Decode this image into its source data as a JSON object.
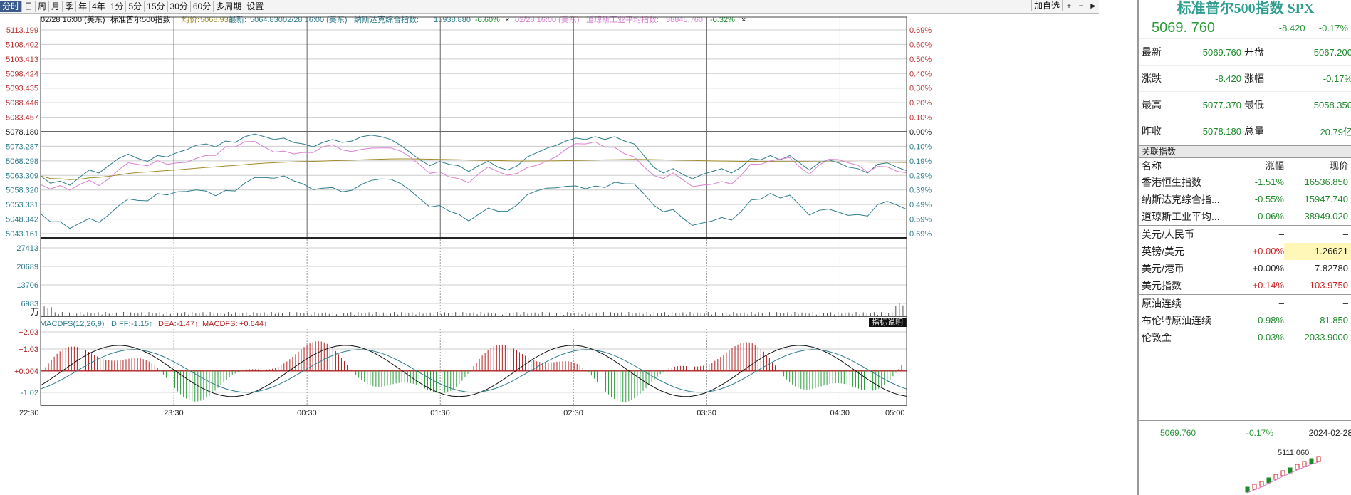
{
  "toolbar": {
    "buttons": [
      "分时",
      "日",
      "周",
      "月",
      "季",
      "年",
      "4年",
      "1分",
      "5分",
      "15分",
      "30分",
      "60分",
      "多周期",
      "设置"
    ],
    "active": 0,
    "add_select_label": "加自选",
    "plus_icon": "plus-icon",
    "minus_icon": "minus-icon",
    "arrow_icon": "arrow-right-icon"
  },
  "chart": {
    "header": {
      "time": "02/28 16:00 (美东)",
      "name": "标准普尔500指数",
      "avg_label": "均价:",
      "avg_value": "5068.938",
      "last_label": "最新:",
      "last_value": "5064.830",
      "compare1_time": "02/28 16:00 (美东)",
      "compare1_name": "纳斯达克综合指数:",
      "compare1_value": "15938.880",
      "compare1_pct": "-0.60%",
      "compare2_time": "02/28 16:00 (美东)",
      "compare2_name": "道琼斯工业平均指数:",
      "compare2_value": "38845.760",
      "compare2_pct": "-0.32%",
      "close_mark": "×"
    },
    "price_labels_left": [
      "5113.199",
      "5108.402",
      "5103.413",
      "5098.424",
      "5093.435",
      "5088.446",
      "5083.457",
      "5078.180",
      "5073.287",
      "5068.298",
      "5063.309",
      "5058.320",
      "5053.331",
      "5048.342",
      "5043.161"
    ],
    "price_labels_right": [
      "0.69%",
      "0.60%",
      "0.50%",
      "0.40%",
      "0.30%",
      "0.20%",
      "0.10%",
      "0.00%",
      "0.10%",
      "0.19%",
      "0.29%",
      "0.39%",
      "0.49%",
      "0.59%",
      "0.69%"
    ],
    "volume_labels": [
      "27413",
      "20689",
      "13706",
      "6983"
    ],
    "volume_unit": "万",
    "indicator_button": "指标说明",
    "macd_header": {
      "name": "MACDFS(12,26,9)",
      "diff_label": "DIFF:",
      "diff": "-1.15↑",
      "dea_label": "DEA:",
      "dea": "-1.47↑",
      "macd_label": "MACDFS:",
      "macd": "+0.644↑"
    },
    "macd_labels": [
      "+2.03",
      "+1.03",
      "+0.004",
      "-1.02"
    ],
    "time_labels": [
      "22:30",
      "23:30",
      "00:30",
      "01:30",
      "02:30",
      "03:30",
      "04:30",
      "05:00"
    ],
    "colors": {
      "price": "#2e7d8c",
      "avg": "#a08c2a",
      "nasdaq": "#2e7d8c",
      "dow": "#d97fd0",
      "macd_up": "#b02020",
      "macd_down": "#2a9a3a"
    },
    "chart_data": {
      "type": "line",
      "x_start": "22:30",
      "x_end": "05:00",
      "ylim": [
        5043.161,
        5113.199
      ],
      "prev_close": 5078.18,
      "series": [
        {
          "name": "标准普尔500指数",
          "values": [
            5063.0,
            5060.5,
            5061.2,
            5059.8,
            5062.5,
            5065.0,
            5064.0,
            5066.5,
            5069.0,
            5070.5,
            5069.0,
            5068.0,
            5070.0,
            5069.5,
            5071.0,
            5072.0,
            5073.5,
            5074.0,
            5073.0,
            5075.0,
            5074.5,
            5076.5,
            5077.4,
            5076.5,
            5075.5,
            5076.0,
            5074.5,
            5074.0,
            5073.0,
            5074.5,
            5075.5,
            5074.5,
            5075.0,
            5076.5,
            5077.0,
            5076.5,
            5075.5,
            5073.5,
            5071.0,
            5068.5,
            5066.5,
            5068.0,
            5067.0,
            5066.5,
            5064.5,
            5066.5,
            5068.0,
            5066.0,
            5065.0,
            5066.5,
            5069.5,
            5071.0,
            5072.5,
            5073.5,
            5075.0,
            5076.0,
            5075.5,
            5076.5,
            5075.5,
            5076.5,
            5075.0,
            5074.0,
            5070.0,
            5066.0,
            5064.0,
            5065.5,
            5063.5,
            5062.0,
            5063.5,
            5064.5,
            5065.5,
            5064.0,
            5066.0,
            5069.0,
            5068.5,
            5070.0,
            5068.5,
            5070.0,
            5067.5,
            5065.0,
            5067.5,
            5068.5,
            5067.5,
            5066.0,
            5065.5,
            5064.0,
            5067.0,
            5067.5,
            5066.0,
            5064.8
          ]
        }
      ]
    }
  },
  "panel": {
    "title": "标准普尔500指数 SPX",
    "price": "5069. 760",
    "change": "-8.420",
    "change_pct": "-0.17%",
    "stats": [
      {
        "k1": "最新",
        "v1": "5069.760",
        "k2": "开盘",
        "v2": "5067.200"
      },
      {
        "k1": "涨跌",
        "v1": "-8.420",
        "k2": "涨幅",
        "v2": "-0.17%"
      },
      {
        "k1": "最高",
        "v1": "5077.370",
        "k2": "最低",
        "v2": "5058.350"
      },
      {
        "k1": "昨收",
        "v1": "5078.180",
        "k2": "总量",
        "v2": "20.79亿"
      }
    ],
    "related_title": "关联指数",
    "related_headers": [
      "名称",
      "涨幅",
      "现价"
    ],
    "related": [
      {
        "name": "香港恒生指数",
        "pct": "-1.51%",
        "price": "16536.850",
        "dir": "down"
      },
      {
        "name": "纳斯达克综合指...",
        "pct": "-0.55%",
        "price": "15947.740",
        "dir": "down"
      },
      {
        "name": "道琼斯工业平均...",
        "pct": "-0.06%",
        "price": "38949.020",
        "dir": "down"
      },
      {
        "name": "美元/人民币",
        "pct": "–",
        "price": "–",
        "dir": "none",
        "sep": true
      },
      {
        "name": "英镑/美元",
        "pct": "+0.00%",
        "price": "1.26621",
        "dir": "up",
        "hl": true
      },
      {
        "name": "美元/港币",
        "pct": "+0.00%",
        "price": "7.82780",
        "dir": "flat"
      },
      {
        "name": "美元指数",
        "pct": "+0.14%",
        "price": "103.9750",
        "dir": "up"
      },
      {
        "name": "原油连续",
        "pct": "–",
        "price": "–",
        "dir": "none",
        "sep": true
      },
      {
        "name": "布伦特原油连续",
        "pct": "-0.98%",
        "price": "81.850",
        "dir": "down"
      },
      {
        "name": "伦敦金",
        "pct": "-0.03%",
        "price": "2033.9000",
        "dir": "down"
      }
    ],
    "footer_price": "5069.760",
    "footer_pct": "-0.17%",
    "footer_date": "2024-02-28",
    "mini_label": "5111.060"
  }
}
